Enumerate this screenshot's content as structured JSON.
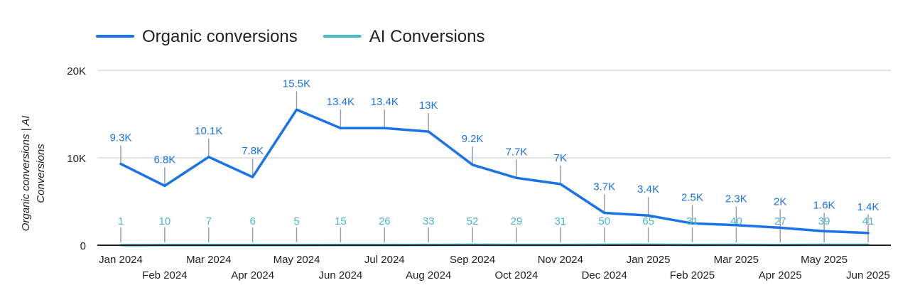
{
  "chart_data": {
    "type": "line",
    "title": "",
    "ylabel_lines": [
      "Organic conversions | AI",
      "Conversions"
    ],
    "xlabel": "",
    "ylim": [
      0,
      20000
    ],
    "yticks": [
      {
        "value": 0,
        "label": "0"
      },
      {
        "value": 10000,
        "label": "10K"
      },
      {
        "value": 20000,
        "label": "20K"
      }
    ],
    "grid": true,
    "legend_position": "top-left",
    "categories": [
      "Jan 2024",
      "Feb 2024",
      "Mar 2024",
      "Apr 2024",
      "May 2024",
      "Jun 2024",
      "Jul 2024",
      "Aug 2024",
      "Sep 2024",
      "Oct 2024",
      "Nov 2024",
      "Dec 2024",
      "Jan 2025",
      "Feb 2025",
      "Mar 2025",
      "Apr 2025",
      "May 2025",
      "Jun 2025"
    ],
    "series": [
      {
        "name": "Organic conversions",
        "color": "#1a73e8",
        "values": [
          9300,
          6800,
          10100,
          7800,
          15500,
          13400,
          13400,
          13000,
          9200,
          7700,
          7000,
          3700,
          3400,
          2500,
          2300,
          2000,
          1600,
          1400
        ],
        "labels": [
          "9.3K",
          "6.8K",
          "10.1K",
          "7.8K",
          "15.5K",
          "13.4K",
          "13.4K",
          "13K",
          "9.2K",
          "7.7K",
          "7K",
          "3.7K",
          "3.4K",
          "2.5K",
          "2.3K",
          "2K",
          "1.6K",
          "1.4K"
        ]
      },
      {
        "name": "AI Conversions",
        "color": "#4ab8c8",
        "values": [
          1,
          10,
          7,
          6,
          5,
          15,
          26,
          33,
          52,
          29,
          31,
          50,
          65,
          31,
          40,
          27,
          39,
          41
        ],
        "labels": [
          "1",
          "10",
          "7",
          "6",
          "5",
          "15",
          "26",
          "33",
          "52",
          "29",
          "31",
          "50",
          "65",
          "31",
          "40",
          "27",
          "39",
          "41"
        ]
      }
    ]
  }
}
